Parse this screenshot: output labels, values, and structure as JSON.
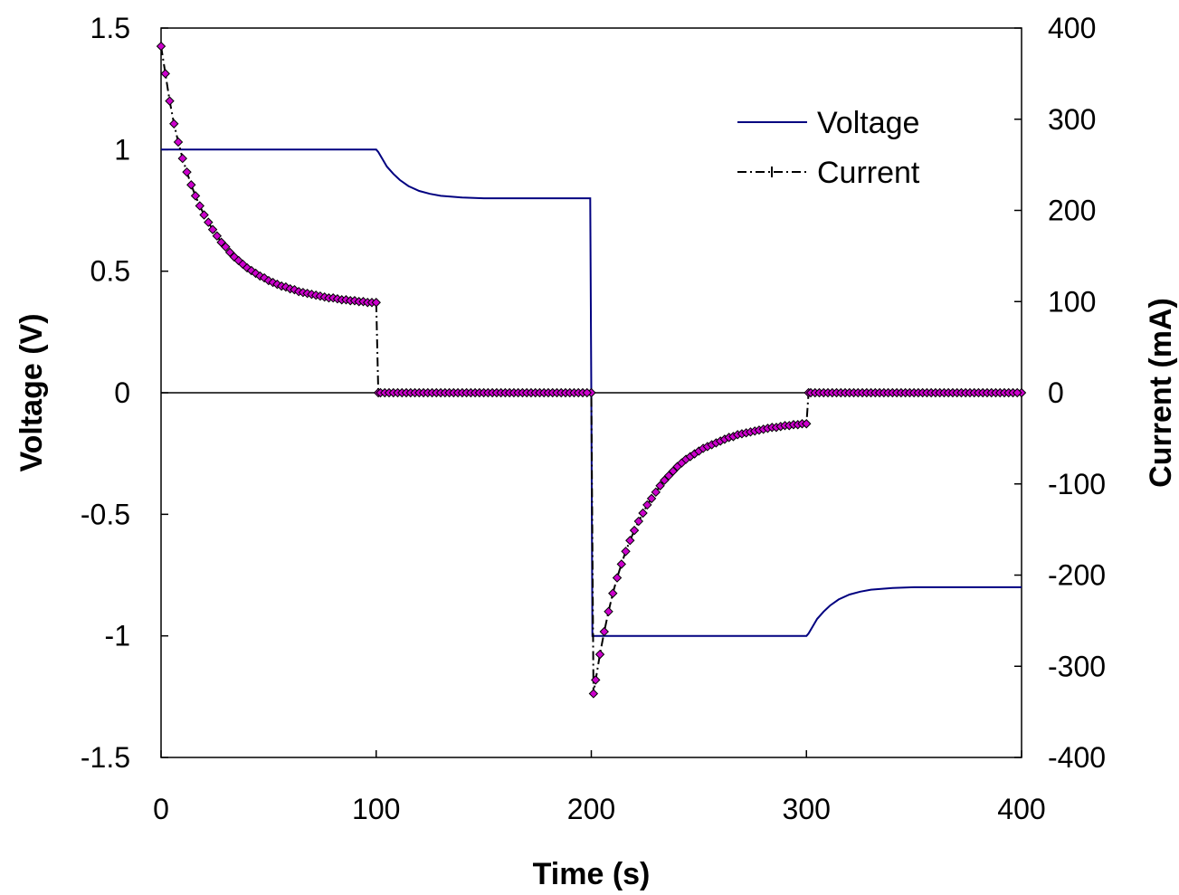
{
  "chart_data": {
    "type": "line",
    "xlabel": "Time (s)",
    "ylabel": "Voltage (V)",
    "y2label": "Current (mA)",
    "xlim": [
      0,
      400
    ],
    "ylim": [
      -1.5,
      1.5
    ],
    "y2lim": [
      -400,
      400
    ],
    "x_ticks": [
      "0",
      "100",
      "200",
      "300",
      "400"
    ],
    "y_ticks": [
      "-1.5",
      "-1",
      "-0.5",
      "0",
      "0.5",
      "1",
      "1.5"
    ],
    "y2_ticks": [
      "-400",
      "-300",
      "-200",
      "-100",
      "0",
      "100",
      "200",
      "300",
      "400"
    ],
    "grid": false,
    "legend_position": "top-right",
    "colors": {
      "voltage": "#000080",
      "current_line": "#000000",
      "marker_fill": "#CC00CC",
      "marker_stroke": "#000000"
    },
    "series": [
      {
        "name": "Voltage",
        "axis": "left",
        "style": "solid",
        "x": [
          0,
          100,
          101,
          103,
          105,
          108,
          111,
          115,
          120,
          125,
          130,
          140,
          150,
          160,
          180,
          199.5,
          200,
          200.5,
          220,
          260,
          299,
          300,
          301,
          303,
          305,
          308,
          311,
          315,
          320,
          325,
          330,
          340,
          350,
          360,
          380,
          400
        ],
        "y": [
          1,
          1,
          0.99,
          0.96,
          0.93,
          0.9,
          0.875,
          0.85,
          0.83,
          0.818,
          0.81,
          0.803,
          0.8,
          0.8,
          0.8,
          0.8,
          0,
          -1,
          -1,
          -1,
          -1,
          -1,
          -0.99,
          -0.96,
          -0.93,
          -0.9,
          -0.875,
          -0.85,
          -0.83,
          -0.818,
          -0.81,
          -0.803,
          -0.8,
          -0.8,
          -0.8,
          -0.8
        ]
      },
      {
        "name": "Current",
        "axis": "right",
        "style": "dash-dot with markers",
        "x": [
          0,
          2,
          4,
          6,
          8,
          10,
          12,
          14,
          16,
          18,
          20,
          22,
          24,
          26,
          28,
          30,
          32,
          34,
          36,
          38,
          40,
          42,
          44,
          46,
          48,
          50,
          52,
          54,
          56,
          58,
          60,
          62,
          64,
          66,
          68,
          70,
          72,
          74,
          76,
          78,
          80,
          82,
          84,
          86,
          88,
          90,
          92,
          94,
          96,
          98,
          100,
          101,
          200,
          201,
          202,
          204,
          206,
          208,
          210,
          212,
          214,
          216,
          218,
          220,
          222,
          224,
          226,
          228,
          230,
          232,
          234,
          236,
          238,
          240,
          242,
          244,
          246,
          248,
          250,
          252,
          254,
          256,
          258,
          260,
          262,
          264,
          266,
          268,
          270,
          272,
          274,
          276,
          278,
          280,
          282,
          284,
          286,
          288,
          290,
          292,
          294,
          296,
          298,
          300,
          301,
          400
        ],
        "y": [
          380,
          350,
          320,
          295,
          275,
          257,
          242,
          228,
          216,
          205,
          195,
          187,
          179,
          172,
          165,
          160,
          154,
          149,
          145,
          141,
          137,
          134,
          131,
          128,
          126,
          123,
          121,
          119,
          117,
          116,
          114,
          113,
          111,
          110,
          109,
          108,
          107,
          106,
          105,
          104,
          104,
          103,
          102,
          102,
          101,
          101,
          100,
          100,
          99,
          99,
          99,
          0,
          0,
          -330,
          -315,
          -287,
          -262,
          -240,
          -220,
          -203,
          -188,
          -174,
          -162,
          -151,
          -141,
          -132,
          -123,
          -116,
          -109,
          -102,
          -96,
          -91,
          -86,
          -81,
          -77,
          -73,
          -70,
          -67,
          -64,
          -61,
          -59,
          -57,
          -55,
          -53,
          -51,
          -49,
          -48,
          -46,
          -45,
          -44,
          -43,
          -42,
          -41,
          -40,
          -39,
          -38,
          -38,
          -37,
          -36,
          -36,
          -35,
          -35,
          -34,
          -34,
          0,
          0
        ]
      }
    ]
  }
}
